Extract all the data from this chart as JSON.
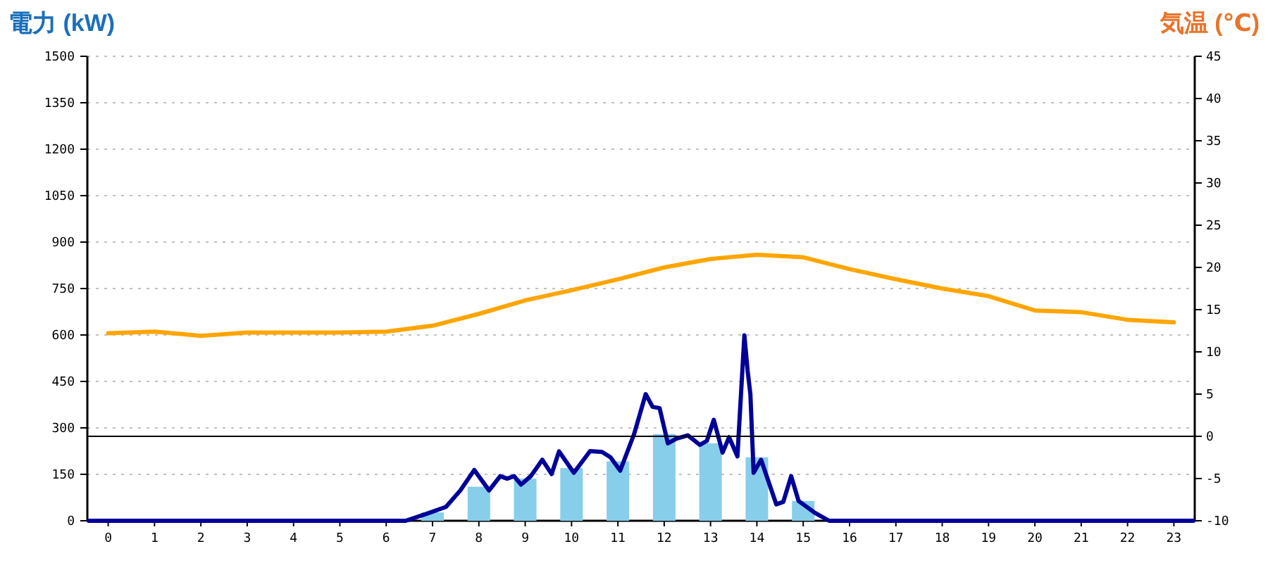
{
  "chart_data": {
    "type": "bar",
    "ylabel": "電力 (kW)",
    "y2label": "気温 (℃)",
    "x": [
      0,
      1,
      2,
      3,
      4,
      5,
      6,
      7,
      8,
      9,
      10,
      11,
      12,
      13,
      14,
      15,
      16,
      17,
      18,
      19,
      20,
      21,
      22,
      23
    ],
    "xlim": [
      -0.45,
      23.45
    ],
    "xticks": [
      0,
      1,
      2,
      3,
      4,
      5,
      6,
      7,
      8,
      9,
      10,
      11,
      12,
      13,
      14,
      15,
      16,
      17,
      18,
      19,
      20,
      21,
      22,
      23
    ],
    "ylim": [
      0,
      1500
    ],
    "yticks": [
      0,
      150,
      300,
      450,
      600,
      750,
      900,
      1050,
      1200,
      1350,
      1500
    ],
    "y2lim": [
      -10,
      45
    ],
    "y2ticks": [
      -10,
      -5,
      0,
      5,
      10,
      15,
      20,
      25,
      30,
      35,
      40,
      45
    ],
    "grid": "y",
    "series": [
      {
        "color": "#87ceeb",
        "values": [
          0,
          0,
          0,
          0,
          0,
          0,
          0,
          27,
          110,
          136,
          170,
          192,
          280,
          250,
          205,
          64,
          0,
          0,
          0,
          0,
          0,
          0,
          0,
          0
        ]
      },
      {
        "type": "line",
        "color": "#000099",
        "x": [
          -0.42,
          6.42,
          6.88,
          7.29,
          7.6,
          7.9,
          8.22,
          8.46,
          8.61,
          8.76,
          8.91,
          9.12,
          9.37,
          9.57,
          9.73,
          10.05,
          10.4,
          10.66,
          10.84,
          11.05,
          11.35,
          11.6,
          11.75,
          11.9,
          12.08,
          12.26,
          12.51,
          12.77,
          12.92,
          13.07,
          13.26,
          13.4,
          13.58,
          13.73,
          13.8,
          13.86,
          13.93,
          14.09,
          14.42,
          14.57,
          14.74,
          14.9,
          15.25,
          15.56,
          23.42
        ],
        "values": [
          0,
          0,
          23,
          45,
          98,
          164,
          98,
          144,
          136,
          144,
          117,
          144,
          197,
          151,
          224,
          155,
          225,
          222,
          205,
          162,
          280,
          409,
          368,
          364,
          250,
          265,
          276,
          245,
          258,
          326,
          220,
          270,
          208,
          599,
          485,
          409,
          155,
          197,
          53,
          61,
          144,
          64,
          26,
          0,
          0
        ]
      },
      {
        "type": "line",
        "axis": "y2",
        "color": "#ffa500",
        "values": [
          12.2,
          12.4,
          11.9,
          12.3,
          12.3,
          12.3,
          12.4,
          13.1,
          14.5,
          16.1,
          17.3,
          18.6,
          20.0,
          21.0,
          21.5,
          21.2,
          19.8,
          18.6,
          17.5,
          16.6,
          14.9,
          14.7,
          13.8,
          13.5
        ]
      }
    ],
    "ref_lines": [
      {
        "axis": "y2",
        "value": 0,
        "color": "#000000"
      }
    ]
  }
}
